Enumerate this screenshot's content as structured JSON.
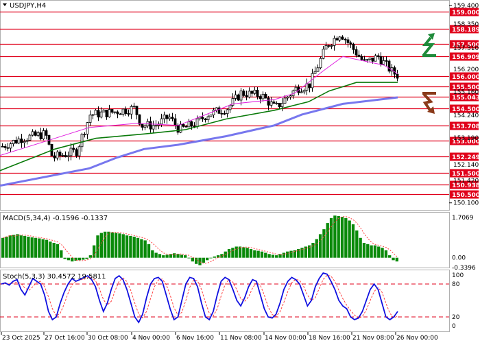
{
  "colors": {
    "level_line": "#e0001b",
    "level_box": "#e0001b",
    "ma_fast": "#e020e0",
    "ma_mid": "#0a7a0a",
    "ma_slow": "#7777ee",
    "candle": "#000000",
    "macd_bar": "#0a8a0a",
    "macd_signal": "#ff4040",
    "stoch_main": "#1010e0",
    "stoch_signal": "#ff4040",
    "stoch_level": "#e0001b",
    "arrow_up": "#1f8a3a",
    "arrow_down": "#8a3a1a"
  },
  "header": {
    "symbol": "USDJPY,H4",
    "macd_label": "MACD(5,34,4) -0.1596 -0.1337",
    "stoch_label": "Stoch(5,3,3) 30.4572 19.5811"
  },
  "icons": {
    "up": "green-up-arrow-icon",
    "down": "brown-down-arrow-icon"
  },
  "chart_data": {
    "type": "candlestick",
    "instrument": "USDJPY",
    "timeframe": "H4",
    "price_axis": {
      "range": [
        149.9,
        159.4
      ],
      "top_label": "159.400",
      "bottom_label": "150.100",
      "partial_labels": [
        "158.350",
        "157.310",
        "156.200",
        "155.160",
        "154.240",
        "153.190",
        "152.140",
        "151.420"
      ]
    },
    "levels": [
      {
        "label": "159.000",
        "value": 159.0
      },
      {
        "label": "158.189",
        "value": 158.189
      },
      {
        "label": "157.500",
        "value": 157.5
      },
      {
        "label": "156.909",
        "value": 156.909
      },
      {
        "label": "156.000",
        "value": 156.0
      },
      {
        "label": "155.500",
        "value": 155.5
      },
      {
        "label": "155.043",
        "value": 155.043
      },
      {
        "label": "154.500",
        "value": 154.5
      },
      {
        "label": "153.708",
        "value": 153.708
      },
      {
        "label": "153.000",
        "value": 153.0
      },
      {
        "label": "152.249",
        "value": 152.249
      },
      {
        "label": "151.500",
        "value": 151.5
      },
      {
        "label": "150.938",
        "value": 150.938
      },
      {
        "label": "150.500",
        "value": 150.5
      }
    ],
    "x_labels": [
      "23 Oct 2025",
      "27 Oct 16:00",
      "30 Oct 08:00",
      "4 Nov 00:00",
      "6 Nov 16:00",
      "11 Nov 08:00",
      "14 Nov 00:00",
      "18 Nov 16:00",
      "21 Nov 08:00",
      "26 Nov 00:00"
    ],
    "ma_fast_path": [
      [
        152.3,
        0
      ],
      [
        153.0,
        70
      ],
      [
        153.6,
        130
      ],
      [
        153.8,
        200
      ],
      [
        153.7,
        260
      ],
      [
        154.2,
        300
      ],
      [
        154.7,
        340
      ],
      [
        154.9,
        400
      ],
      [
        155.2,
        430
      ],
      [
        156.2,
        470
      ],
      [
        156.9,
        500
      ],
      [
        156.5,
        560
      ],
      [
        156.1,
        580
      ]
    ],
    "ma_mid_path": [
      [
        151.6,
        0
      ],
      [
        152.6,
        80
      ],
      [
        153.1,
        140
      ],
      [
        153.3,
        210
      ],
      [
        153.5,
        270
      ],
      [
        154.0,
        330
      ],
      [
        154.4,
        400
      ],
      [
        154.8,
        450
      ],
      [
        155.3,
        480
      ],
      [
        155.7,
        520
      ],
      [
        155.7,
        580
      ]
    ],
    "ma_slow_path": [
      [
        150.9,
        0
      ],
      [
        151.7,
        130
      ],
      [
        152.2,
        170
      ],
      [
        152.6,
        210
      ],
      [
        152.8,
        260
      ],
      [
        153.2,
        330
      ],
      [
        153.7,
        400
      ],
      [
        154.2,
        440
      ],
      [
        154.7,
        500
      ],
      [
        155.0,
        580
      ]
    ],
    "macd": {
      "label": "MACD(5,34,4) -0.1596 -0.1337",
      "scale_labels": [
        "1.7069",
        "0.00",
        "-0.3396"
      ],
      "bars": [
        0.8,
        0.85,
        0.9,
        0.92,
        0.95,
        0.9,
        0.88,
        0.85,
        0.82,
        0.8,
        0.78,
        0.75,
        0.72,
        0.65,
        0.6,
        0.55,
        0.3,
        -0.05,
        -0.1,
        -0.15,
        -0.12,
        -0.1,
        -0.08,
        -0.05,
        0.1,
        0.5,
        0.9,
        1.0,
        1.05,
        1.05,
        1.02,
        1.0,
        0.98,
        0.95,
        0.9,
        0.88,
        0.85,
        0.8,
        0.75,
        0.7,
        0.55,
        0.3,
        0.2,
        0.15,
        0.1,
        0.12,
        0.15,
        0.18,
        0.15,
        0.12,
        0.1,
        0.0,
        -0.15,
        -0.25,
        -0.3,
        -0.2,
        -0.1,
        0.0,
        0.05,
        0.1,
        0.15,
        0.25,
        0.35,
        0.4,
        0.45,
        0.45,
        0.42,
        0.4,
        0.35,
        0.3,
        0.28,
        0.25,
        0.2,
        0.15,
        0.12,
        0.1,
        0.15,
        0.2,
        0.25,
        0.28,
        0.3,
        0.35,
        0.4,
        0.45,
        0.5,
        0.6,
        0.75,
        0.95,
        1.15,
        1.4,
        1.6,
        1.7,
        1.68,
        1.65,
        1.6,
        1.5,
        1.35,
        1.1,
        0.8,
        0.6,
        0.55,
        0.5,
        0.5,
        0.45,
        0.4,
        0.3,
        0.1,
        -0.1,
        -0.15
      ],
      "range": [
        -0.34,
        1.707
      ]
    },
    "stoch": {
      "label": "Stoch(5,3,3) 30.4572 19.5811",
      "scale_labels": [
        "100",
        "80",
        "20",
        "0"
      ],
      "levels": [
        80,
        20
      ],
      "main": [
        80,
        82,
        78,
        85,
        88,
        70,
        60,
        75,
        90,
        85,
        80,
        60,
        30,
        15,
        20,
        45,
        65,
        80,
        90,
        85,
        88,
        92,
        95,
        88,
        75,
        50,
        30,
        45,
        70,
        90,
        95,
        88,
        70,
        45,
        20,
        10,
        25,
        55,
        80,
        90,
        92,
        85,
        60,
        35,
        15,
        20,
        50,
        80,
        92,
        90,
        75,
        45,
        20,
        15,
        30,
        60,
        85,
        92,
        88,
        70,
        50,
        40,
        55,
        75,
        88,
        85,
        60,
        35,
        20,
        18,
        25,
        45,
        70,
        85,
        92,
        88,
        80,
        60,
        40,
        50,
        75,
        90,
        100,
        98,
        85,
        70,
        50,
        40,
        35,
        20,
        15,
        18,
        30,
        50,
        70,
        80,
        70,
        45,
        20,
        15,
        20,
        30
      ],
      "range": [
        0,
        100
      ]
    }
  }
}
